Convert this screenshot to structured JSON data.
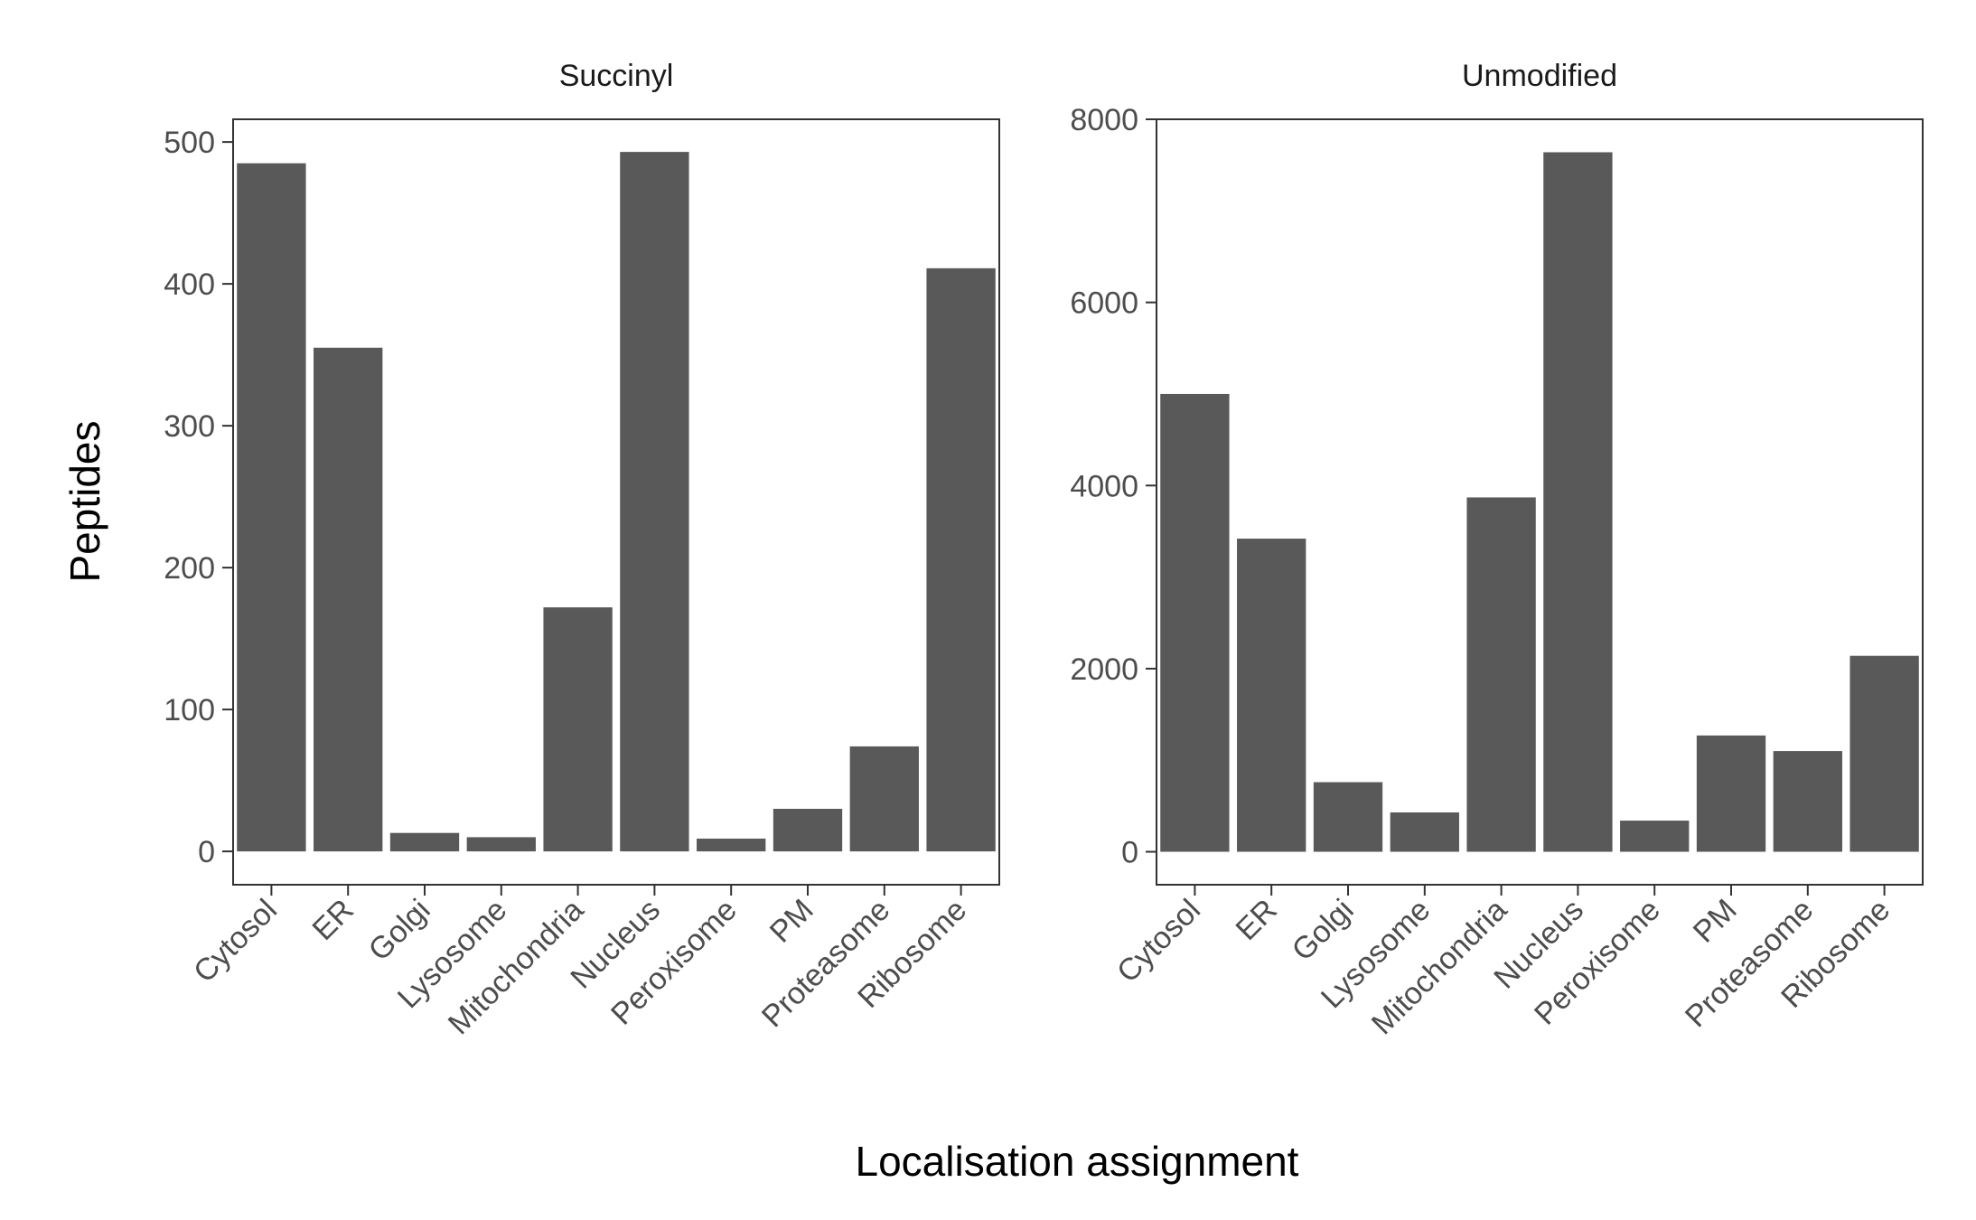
{
  "chart_data": {
    "type": "bar",
    "xlabel": "Localisation assignment",
    "ylabel": "Peptides",
    "bar_color": "#595959",
    "panel_border_color": "#333333",
    "categories": [
      "Cytosol",
      "ER",
      "Golgi",
      "Lysosome",
      "Mitochondria",
      "Nucleus",
      "Peroxisome",
      "PM",
      "Proteasome",
      "Ribosome"
    ],
    "panels": [
      {
        "title": "Succinyl",
        "ylim": [
          -23.5,
          516
        ],
        "yticks": [
          0,
          100,
          200,
          300,
          400,
          500
        ],
        "values": [
          485,
          355,
          13,
          10,
          172,
          493,
          9,
          30,
          74,
          411
        ]
      },
      {
        "title": "Unmodified",
        "ylim": [
          -360,
          8000
        ],
        "yticks": [
          0,
          2000,
          4000,
          6000,
          8000
        ],
        "values": [
          5000,
          3420,
          760,
          430,
          3870,
          7640,
          340,
          1270,
          1100,
          2140
        ]
      }
    ]
  }
}
